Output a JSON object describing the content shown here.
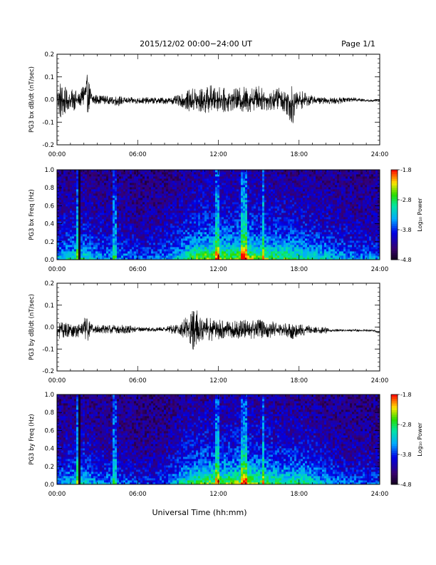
{
  "header": {
    "title": "2015/12/02  00:00−24:00 UT",
    "page": "Page 1/1"
  },
  "xlabel": "Universal Time (hh:mm)",
  "chart_data": [
    {
      "type": "line",
      "ylabel": "PG3 bx dB/dt (nT/sec)",
      "xlim": [
        "00:00",
        "24:00"
      ],
      "ylim": [
        -0.2,
        0.2
      ],
      "x_ticks": [
        "00:00",
        "06:00",
        "12:00",
        "18:00",
        "24:00"
      ],
      "y_ticks": [
        "-0.2",
        "-0.1",
        "0.0",
        "0.1",
        "0.2"
      ],
      "x_hours": [
        0,
        0.25,
        0.5,
        0.75,
        1,
        1.25,
        1.5,
        1.75,
        2,
        2.25,
        2.5,
        2.75,
        3,
        3.5,
        4,
        4.5,
        5,
        5.5,
        6,
        6.5,
        7,
        7.5,
        8,
        8.5,
        9,
        9.25,
        9.5,
        9.75,
        10,
        10.25,
        10.5,
        10.75,
        11,
        11.25,
        11.5,
        11.75,
        12,
        12.5,
        13,
        13.25,
        13.5,
        13.75,
        14,
        14.25,
        14.5,
        14.75,
        15,
        15.25,
        15.5,
        15.75,
        16,
        16.25,
        16.5,
        16.75,
        17,
        17.25,
        17.5,
        17.75,
        18,
        18.25,
        18.5,
        18.75,
        19,
        19.5,
        20,
        20.5,
        21,
        21.5,
        22,
        22.5,
        23,
        23.5,
        24
      ],
      "envelope_max": [
        0.05,
        0.09,
        0.07,
        0.04,
        0.03,
        0.06,
        0.03,
        0.03,
        0.1,
        0.11,
        0.06,
        0.03,
        0.02,
        0.02,
        0.01,
        0.02,
        0.01,
        0.01,
        0.01,
        0.01,
        0.01,
        0.01,
        0.01,
        0.01,
        0.02,
        0.02,
        0.04,
        0.04,
        0.05,
        0.06,
        0.05,
        0.05,
        0.06,
        0.06,
        0.07,
        0.05,
        0.06,
        0.05,
        0.04,
        0.05,
        0.05,
        0.06,
        0.06,
        0.05,
        0.06,
        0.06,
        0.07,
        0.05,
        0.05,
        0.04,
        0.04,
        0.05,
        0.06,
        0.04,
        0.05,
        0.07,
        0.07,
        0.03,
        0.04,
        0.04,
        0.03,
        0.02,
        0.02,
        0.01,
        0.01,
        0.01,
        0.01,
        0.01,
        0.01,
        0.01,
        0.0,
        0.0,
        0.0
      ],
      "envelope_min": [
        -0.04,
        -0.1,
        -0.09,
        -0.05,
        -0.04,
        -0.05,
        -0.04,
        -0.03,
        -0.05,
        -0.06,
        -0.05,
        -0.03,
        -0.02,
        -0.02,
        -0.02,
        -0.03,
        -0.02,
        -0.02,
        -0.02,
        -0.02,
        -0.02,
        -0.02,
        -0.02,
        -0.02,
        -0.03,
        -0.03,
        -0.05,
        -0.05,
        -0.06,
        -0.06,
        -0.07,
        -0.06,
        -0.07,
        -0.06,
        -0.06,
        -0.06,
        -0.05,
        -0.06,
        -0.05,
        -0.05,
        -0.06,
        -0.06,
        -0.07,
        -0.06,
        -0.05,
        -0.05,
        -0.05,
        -0.05,
        -0.05,
        -0.05,
        -0.05,
        -0.05,
        -0.04,
        -0.05,
        -0.06,
        -0.09,
        -0.12,
        -0.05,
        -0.05,
        -0.04,
        -0.03,
        -0.03,
        -0.02,
        -0.02,
        -0.02,
        -0.02,
        -0.02,
        -0.01,
        -0.01,
        -0.01,
        -0.01,
        -0.01,
        -0.01
      ]
    },
    {
      "type": "heatmap",
      "ylabel": "PG3 bx Freq (Hz)",
      "xlim": [
        "00:00",
        "24:00"
      ],
      "ylim": [
        0.0,
        1.0
      ],
      "x_ticks": [
        "00:00",
        "06:00",
        "12:00",
        "18:00",
        "24:00"
      ],
      "y_ticks": [
        "0.0",
        "0.2",
        "0.4",
        "0.6",
        "0.8",
        "1.0"
      ],
      "colorbar": {
        "label": "Log₁₀ Power",
        "range": [
          -4.8,
          -1.8
        ],
        "ticks": [
          "-1.8",
          "-2.8",
          "-3.8",
          "-4.8"
        ]
      },
      "hours": [
        0,
        1,
        2,
        3,
        4,
        5,
        6,
        7,
        8,
        9,
        10,
        11,
        12,
        13,
        14,
        15,
        16,
        17,
        18,
        19,
        20,
        21,
        22,
        23,
        24
      ],
      "activity": [
        0.35,
        0.45,
        0.45,
        0.35,
        0.3,
        0.3,
        0.25,
        0.25,
        0.3,
        0.4,
        0.55,
        0.65,
        0.65,
        0.6,
        0.7,
        0.6,
        0.55,
        0.55,
        0.5,
        0.45,
        0.4,
        0.35,
        0.3,
        0.3,
        0.3
      ],
      "vertical_streaks_hours": [
        1.5,
        1.6,
        4.3,
        11.9,
        13.8,
        14.0,
        15.3
      ],
      "data_gap_hours": [
        1.6,
        1.75
      ]
    },
    {
      "type": "line",
      "ylabel": "PG3 by dB/dt (nT/sec)",
      "xlim": [
        "00:00",
        "24:00"
      ],
      "ylim": [
        -0.2,
        0.2
      ],
      "x_ticks": [
        "00:00",
        "06:00",
        "12:00",
        "18:00",
        "24:00"
      ],
      "y_ticks": [
        "-0.2",
        "-0.1",
        "0.0",
        "0.1",
        "0.2"
      ],
      "x_hours": [
        0,
        0.25,
        0.5,
        0.75,
        1,
        1.25,
        1.5,
        1.75,
        2,
        2.25,
        2.5,
        2.75,
        3,
        3.5,
        4,
        4.5,
        5,
        5.5,
        6,
        6.5,
        7,
        7.5,
        8,
        8.5,
        9,
        9.25,
        9.5,
        9.75,
        10,
        10.25,
        10.5,
        10.75,
        11,
        11.25,
        11.5,
        11.75,
        12,
        12.5,
        13,
        13.25,
        13.5,
        13.75,
        14,
        14.25,
        14.5,
        14.75,
        15,
        15.25,
        15.5,
        15.75,
        16,
        16.25,
        16.5,
        16.75,
        17,
        17.25,
        17.5,
        17.75,
        18,
        18.25,
        18.5,
        18.75,
        19,
        19.5,
        20,
        20.5,
        21,
        21.5,
        22,
        22.5,
        23,
        23.5,
        24
      ],
      "envelope_max": [
        0.02,
        0.03,
        0.02,
        0.02,
        0.02,
        0.02,
        0.02,
        0.02,
        0.04,
        0.05,
        0.02,
        0.01,
        0.01,
        0.01,
        0.01,
        0.01,
        0.01,
        0.01,
        0.0,
        0.0,
        0.0,
        0.0,
        0.0,
        0.01,
        0.01,
        0.02,
        0.05,
        0.06,
        0.07,
        0.09,
        0.07,
        0.05,
        0.04,
        0.05,
        0.05,
        0.04,
        0.04,
        0.03,
        0.03,
        0.03,
        0.04,
        0.04,
        0.04,
        0.03,
        0.03,
        0.03,
        0.04,
        0.04,
        0.03,
        0.03,
        0.03,
        0.02,
        0.02,
        0.02,
        0.02,
        0.02,
        0.02,
        0.02,
        0.02,
        0.02,
        0.01,
        0.01,
        0.0,
        0.0,
        0.0,
        -0.01,
        -0.01,
        -0.01,
        -0.01,
        -0.01,
        -0.01,
        -0.01,
        -0.02
      ],
      "envelope_min": [
        -0.04,
        -0.06,
        -0.05,
        -0.05,
        -0.04,
        -0.05,
        -0.05,
        -0.04,
        -0.06,
        -0.07,
        -0.04,
        -0.03,
        -0.03,
        -0.03,
        -0.03,
        -0.03,
        -0.03,
        -0.03,
        -0.02,
        -0.02,
        -0.02,
        -0.02,
        -0.02,
        -0.03,
        -0.03,
        -0.04,
        -0.07,
        -0.09,
        -0.11,
        -0.1,
        -0.08,
        -0.07,
        -0.06,
        -0.07,
        -0.07,
        -0.06,
        -0.06,
        -0.05,
        -0.05,
        -0.05,
        -0.06,
        -0.06,
        -0.06,
        -0.06,
        -0.06,
        -0.05,
        -0.06,
        -0.06,
        -0.05,
        -0.05,
        -0.05,
        -0.04,
        -0.04,
        -0.04,
        -0.04,
        -0.05,
        -0.06,
        -0.05,
        -0.04,
        -0.04,
        -0.04,
        -0.03,
        -0.03,
        -0.03,
        -0.03,
        -0.02,
        -0.02,
        -0.02,
        -0.02,
        -0.02,
        -0.02,
        -0.02,
        -0.03
      ]
    },
    {
      "type": "heatmap",
      "ylabel": "PG3 by Freq (Hz)",
      "xlim": [
        "00:00",
        "24:00"
      ],
      "ylim": [
        0.0,
        1.0
      ],
      "x_ticks": [
        "00:00",
        "06:00",
        "12:00",
        "18:00",
        "24:00"
      ],
      "y_ticks": [
        "0.0",
        "0.2",
        "0.4",
        "0.6",
        "0.8",
        "1.0"
      ],
      "colorbar": {
        "label": "Log₁₀ Power",
        "range": [
          -4.8,
          -1.8
        ],
        "ticks": [
          "-1.8",
          "-2.8",
          "-3.8",
          "-4.8"
        ]
      },
      "hours": [
        0,
        1,
        2,
        3,
        4,
        5,
        6,
        7,
        8,
        9,
        10,
        11,
        12,
        13,
        14,
        15,
        16,
        17,
        18,
        19,
        20,
        21,
        22,
        23,
        24
      ],
      "activity": [
        0.3,
        0.4,
        0.45,
        0.3,
        0.3,
        0.25,
        0.2,
        0.2,
        0.25,
        0.4,
        0.55,
        0.6,
        0.6,
        0.6,
        0.65,
        0.6,
        0.55,
        0.5,
        0.5,
        0.45,
        0.35,
        0.3,
        0.25,
        0.25,
        0.25
      ],
      "vertical_streaks_hours": [
        1.5,
        1.6,
        4.3,
        11.9,
        13.8,
        14.0,
        15.3
      ],
      "data_gap_hours": [
        1.6,
        1.75
      ]
    }
  ]
}
